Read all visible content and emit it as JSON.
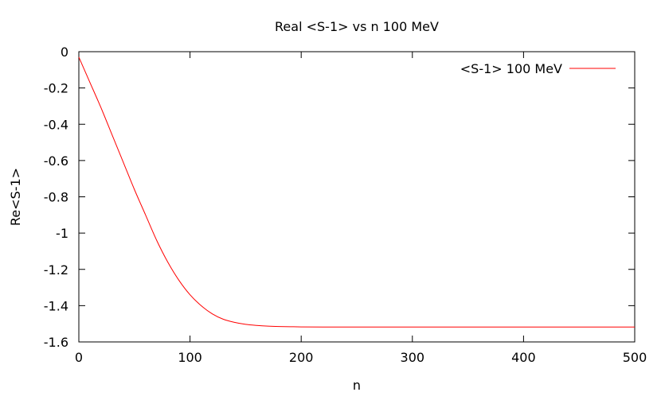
{
  "chart_data": {
    "type": "line",
    "title": "Real <S-1> vs n 100 MeV",
    "xlabel": "n",
    "ylabel": "Re<S-1>",
    "xlim": [
      0,
      500
    ],
    "ylim": [
      -1.6,
      0
    ],
    "xticks": [
      0,
      100,
      200,
      300,
      400,
      500
    ],
    "xtick_labels": [
      "0",
      "100",
      "200",
      "300",
      "400",
      "500"
    ],
    "yticks": [
      0,
      -0.2,
      -0.4,
      -0.6,
      -0.8,
      -1,
      -1.2,
      -1.4,
      -1.6
    ],
    "ytick_labels": [
      "0",
      "-0.2",
      "-0.4",
      "-0.6",
      "-0.8",
      "-1",
      "-1.2",
      "-1.4",
      "-1.6"
    ],
    "grid": false,
    "legend_position": "top-right",
    "series": [
      {
        "name": "<S-1> 100 MeV",
        "color": "#ff0000",
        "x": [
          0,
          5,
          10,
          20,
          30,
          40,
          50,
          60,
          70,
          80,
          90,
          100,
          110,
          120,
          130,
          140,
          150,
          160,
          170,
          180,
          190,
          200,
          220,
          250,
          300,
          350,
          400,
          450,
          500
        ],
        "y": [
          -0.03,
          -0.1,
          -0.17,
          -0.31,
          -0.46,
          -0.61,
          -0.76,
          -0.9,
          -1.04,
          -1.16,
          -1.26,
          -1.34,
          -1.4,
          -1.445,
          -1.475,
          -1.492,
          -1.503,
          -1.509,
          -1.513,
          -1.515,
          -1.516,
          -1.517,
          -1.518,
          -1.518,
          -1.518,
          -1.518,
          -1.518,
          -1.518,
          -1.518
        ]
      }
    ]
  }
}
